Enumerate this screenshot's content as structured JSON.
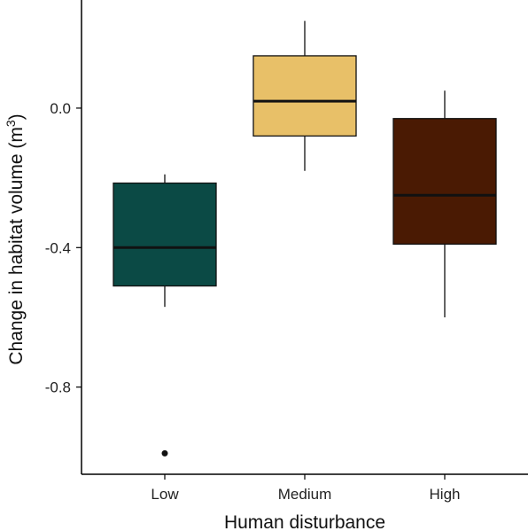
{
  "chart_data": {
    "type": "box",
    "xlabel": "Human disturbance",
    "ylabel": "Change in habitat volume (m",
    "ylabel_sup": "3",
    "ylabel_close": ")",
    "ylim": [
      -1.05,
      0.31
    ],
    "yticks": [
      {
        "value": 0.0,
        "label": "0.0"
      },
      {
        "value": -0.4,
        "label": "-0.4"
      },
      {
        "value": -0.8,
        "label": "-0.8"
      }
    ],
    "categories": [
      "Low",
      "Medium",
      "High"
    ],
    "boxes": [
      {
        "category": "Low",
        "whisker_low": -0.57,
        "q1": -0.51,
        "median": -0.4,
        "q3": -0.215,
        "whisker_high": -0.19,
        "outliers": [
          -0.99
        ],
        "color": "#0b4a45"
      },
      {
        "category": "Medium",
        "whisker_low": -0.18,
        "q1": -0.08,
        "median": 0.02,
        "q3": 0.15,
        "whisker_high": 0.25,
        "outliers": [],
        "color": "#e8c068"
      },
      {
        "category": "High",
        "whisker_low": -0.6,
        "q1": -0.39,
        "median": -0.25,
        "q3": -0.03,
        "whisker_high": 0.05,
        "outliers": [],
        "color": "#4a1a03"
      }
    ]
  }
}
